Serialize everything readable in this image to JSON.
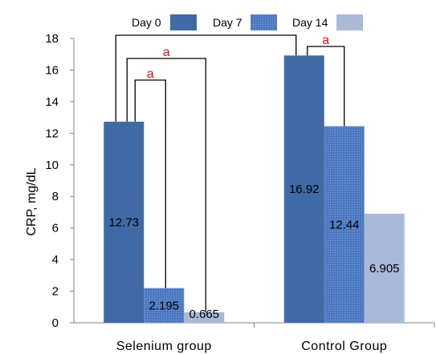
{
  "chart_data": {
    "type": "bar",
    "ylabel": "CRP,  mg/dL",
    "ylim": [
      0,
      18
    ],
    "yticks": [
      0,
      2,
      4,
      6,
      8,
      10,
      12,
      14,
      16,
      18
    ],
    "categories": [
      "Selenium  group",
      "Control  Group"
    ],
    "legend_position": "top",
    "series": [
      {
        "name": "Day 0",
        "values": [
          12.73,
          16.92
        ],
        "labels": [
          "12.73",
          "16.92"
        ],
        "color": "#3f6aa6",
        "pattern": "solid"
      },
      {
        "name": "Day 7",
        "values": [
          2.195,
          12.44
        ],
        "labels": [
          "2.195",
          "12.44"
        ],
        "color": "#4f7cc4",
        "pattern": "dots"
      },
      {
        "name": "Day 14",
        "values": [
          0.665,
          6.905
        ],
        "labels": [
          "0.665",
          "6.905"
        ],
        "color": "#a9b9d8",
        "pattern": "solid"
      }
    ],
    "significance": [
      {
        "group": 0,
        "from": 0,
        "to": 1,
        "label": "a"
      },
      {
        "group": 0,
        "from": 0,
        "to": 2,
        "label": "a"
      },
      {
        "group": 1,
        "from": 0,
        "to": 1,
        "label": "a"
      },
      {
        "between_groups": true,
        "from_group": 0,
        "to_group": 1,
        "series": 0,
        "label": ""
      }
    ]
  }
}
